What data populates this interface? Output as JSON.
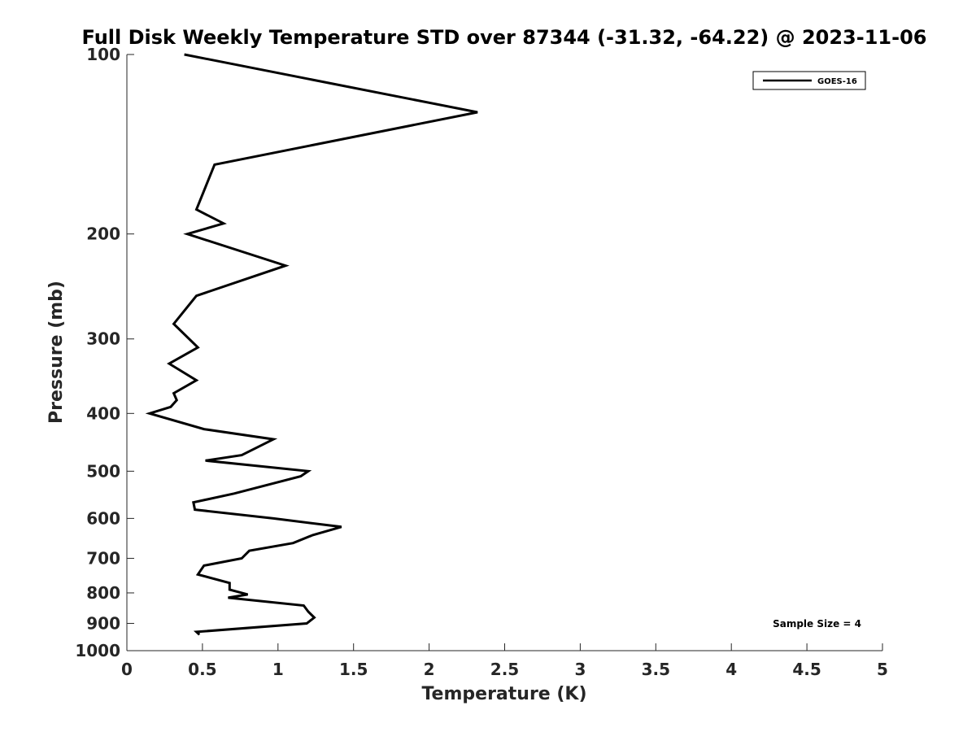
{
  "chart_data": {
    "type": "line",
    "title": "Full Disk Weekly Temperature STD over 87344 (-31.32, -64.22) @ 2023-11-06",
    "xlabel": "Temperature (K)",
    "ylabel": "Pressure (mb)",
    "xlim": [
      0,
      5
    ],
    "ylim": [
      100,
      1000
    ],
    "y_scale": "log",
    "y_reversed": true,
    "x_ticks": [
      "0",
      "0.5",
      "1",
      "1.5",
      "2",
      "2.5",
      "3",
      "3.5",
      "4",
      "4.5",
      "5"
    ],
    "y_ticks": [
      "100",
      "200",
      "300",
      "400",
      "500",
      "600",
      "700",
      "800",
      "900",
      "1000"
    ],
    "grid": false,
    "legend_position": "top-right",
    "annotation": "Sample Size = 4",
    "series": [
      {
        "name": "GOES-16",
        "color": "#000000",
        "points": [
          [
            0.38,
            100
          ],
          [
            2.32,
            125
          ],
          [
            0.58,
            153
          ],
          [
            0.46,
            182
          ],
          [
            0.64,
            192
          ],
          [
            0.4,
            200
          ],
          [
            1.05,
            226
          ],
          [
            0.46,
            254
          ],
          [
            0.31,
            283
          ],
          [
            0.47,
            310
          ],
          [
            0.28,
            330
          ],
          [
            0.46,
            352
          ],
          [
            0.31,
            370
          ],
          [
            0.33,
            380
          ],
          [
            0.29,
            390
          ],
          [
            0.15,
            400
          ],
          [
            0.51,
            425
          ],
          [
            0.97,
            442
          ],
          [
            0.76,
            470
          ],
          [
            0.52,
            480
          ],
          [
            1.2,
            500
          ],
          [
            1.15,
            510
          ],
          [
            0.71,
            545
          ],
          [
            0.44,
            564
          ],
          [
            0.45,
            580
          ],
          [
            0.97,
            600
          ],
          [
            1.42,
            620
          ],
          [
            1.23,
            640
          ],
          [
            1.1,
            660
          ],
          [
            0.81,
            680
          ],
          [
            0.76,
            700
          ],
          [
            0.51,
            720
          ],
          [
            0.47,
            745
          ],
          [
            0.68,
            770
          ],
          [
            0.68,
            790
          ],
          [
            0.8,
            805
          ],
          [
            0.67,
            815
          ],
          [
            1.17,
            840
          ],
          [
            1.2,
            860
          ],
          [
            1.24,
            880
          ],
          [
            1.19,
            900
          ],
          [
            0.46,
            930
          ],
          [
            0.48,
            940
          ]
        ]
      }
    ]
  }
}
